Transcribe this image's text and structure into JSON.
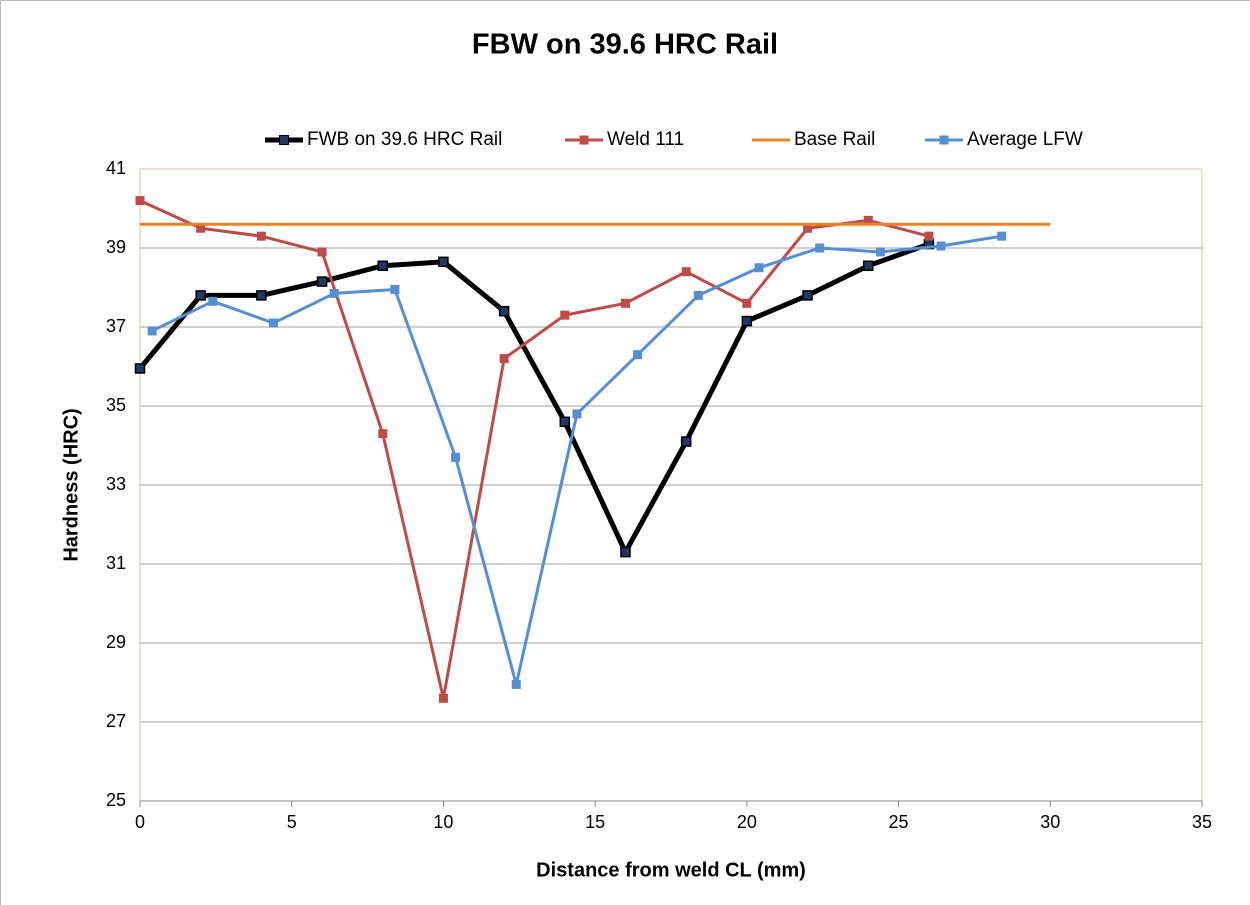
{
  "chart_data": {
    "type": "line",
    "title": "FBW on 39.6 HRC Rail",
    "xlabel": "Distance from weld CL (mm)",
    "ylabel": "Hardness (HRC)",
    "xlim": [
      0,
      35
    ],
    "xticks": [
      0,
      5,
      10,
      15,
      20,
      25,
      30,
      35
    ],
    "ylim": [
      25,
      41
    ],
    "yticks": [
      25,
      27,
      29,
      31,
      33,
      35,
      37,
      39,
      41
    ],
    "grid": true,
    "legend": "top",
    "series": [
      {
        "name": "FWB on 39.6 HRC Rail",
        "color": "#000000",
        "marker_color": "#1f3864",
        "x": [
          0,
          2,
          4,
          6,
          8,
          10,
          12,
          14,
          16,
          18,
          20,
          22,
          24,
          26
        ],
        "values": [
          35.95,
          37.8,
          37.8,
          38.15,
          38.55,
          38.65,
          37.4,
          34.6,
          31.3,
          34.1,
          37.15,
          37.8,
          38.55,
          39.1
        ]
      },
      {
        "name": "Weld 111",
        "color": "#be4b48",
        "marker_color": "#be4b48",
        "x": [
          0,
          2,
          4,
          6,
          8,
          10,
          12,
          14,
          16,
          18,
          20,
          22,
          24,
          26
        ],
        "values": [
          40.2,
          39.5,
          39.3,
          38.9,
          34.3,
          27.6,
          36.2,
          37.3,
          37.6,
          38.4,
          37.6,
          39.5,
          39.7,
          39.3
        ]
      },
      {
        "name": "Base Rail",
        "color": "#e8822a",
        "x": [
          0,
          30
        ],
        "values": [
          39.6,
          39.6
        ]
      },
      {
        "name": "Average LFW",
        "color": "#558ed5",
        "marker_color": "#558ed5",
        "x": [
          0.4,
          2.4,
          4.4,
          6.4,
          8.4,
          10.4,
          12.4,
          14.4,
          16.4,
          18.4,
          20.4,
          22.4,
          24.4,
          26.4,
          28.4
        ],
        "values": [
          36.9,
          37.65,
          37.1,
          37.85,
          37.95,
          33.7,
          27.95,
          34.8,
          36.3,
          37.8,
          38.5,
          39.0,
          38.9,
          39.05,
          39.3
        ]
      }
    ]
  }
}
